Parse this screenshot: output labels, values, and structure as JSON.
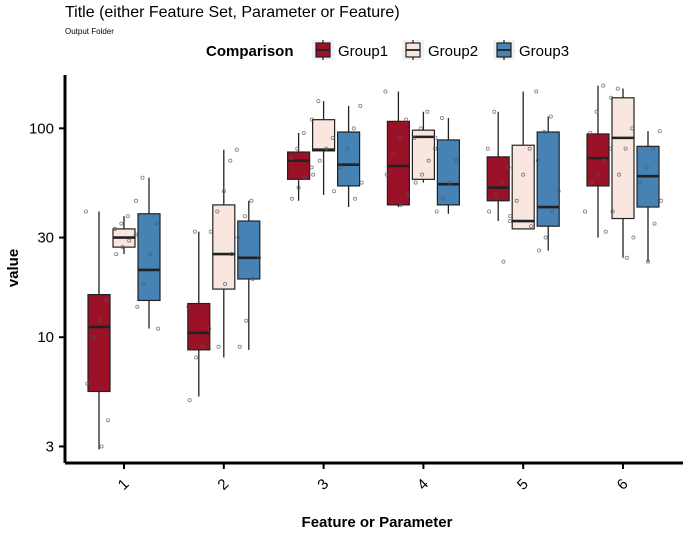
{
  "chart_data": {
    "type": "boxplot",
    "title": "Title (either Feature Set, Parameter or Feature)",
    "subtitle": "Output Folder",
    "xlabel": "Feature or Parameter",
    "ylabel": "value",
    "y_scale": "log10",
    "ylim": [
      2.5,
      180
    ],
    "y_ticks": [
      3,
      10,
      30,
      100
    ],
    "y_tick_labels": [
      "3",
      "10",
      "30",
      "100"
    ],
    "categories": [
      "1",
      "2",
      "3",
      "4",
      "5",
      "6"
    ],
    "legend": {
      "title": "Comparison",
      "position": "top",
      "entries": [
        "Group1",
        "Group2",
        "Group3"
      ]
    },
    "series": [
      {
        "name": "Group1",
        "color": "#9b1128",
        "boxes": [
          {
            "whisker_low": 2.9,
            "q1": 5.5,
            "median": 11.2,
            "q3": 16,
            "whisker_high": 40
          },
          {
            "whisker_low": 5.2,
            "q1": 8.7,
            "median": 10.5,
            "q3": 14.5,
            "whisker_high": 32
          },
          {
            "whisker_low": 45,
            "q1": 57,
            "median": 70,
            "q3": 77,
            "whisker_high": 95
          },
          {
            "whisker_low": 42,
            "q1": 43,
            "median": 66,
            "q3": 108,
            "whisker_high": 150
          },
          {
            "whisker_low": 36,
            "q1": 45,
            "median": 52,
            "q3": 73,
            "whisker_high": 120
          },
          {
            "whisker_low": 30,
            "q1": 53,
            "median": 72,
            "q3": 94,
            "whisker_high": 160
          }
        ],
        "points": [
          [
            [
              40,
              15,
              12,
              10,
              6,
              4,
              3
            ]
          ],
          [
            [
              32,
              14,
              11,
              9,
              8,
              5
            ]
          ],
          [
            [
              95,
              80,
              72,
              65,
              58,
              52,
              46
            ]
          ],
          [
            [
              150,
              110,
              90,
              75,
              60,
              48,
              43
            ]
          ],
          [
            [
              120,
              80,
              65,
              55,
              48,
              40,
              36,
              23
            ]
          ],
          [
            [
              160,
              120,
              95,
              80,
              70,
              60,
              55,
              40,
              32
            ]
          ]
        ]
      },
      {
        "name": "Group2",
        "color": "#f9e6de",
        "boxes": [
          {
            "whisker_low": 25,
            "q1": 27,
            "median": 30,
            "q3": 33,
            "whisker_high": 38
          },
          {
            "whisker_low": 8,
            "q1": 17,
            "median": 25,
            "q3": 43,
            "whisker_high": 79
          },
          {
            "whisker_low": 48,
            "q1": 78,
            "median": 79,
            "q3": 110,
            "whisker_high": 135
          },
          {
            "whisker_low": 55,
            "q1": 57,
            "median": 91,
            "q3": 98,
            "whisker_high": 120
          },
          {
            "whisker_low": 33,
            "q1": 33,
            "median": 36,
            "q3": 83,
            "whisker_high": 150
          },
          {
            "whisker_low": 24,
            "q1": 37,
            "median": 90,
            "q3": 140,
            "whisker_high": 155
          }
        ],
        "points": [
          [
            [
              38,
              35,
              33,
              31,
              29,
              27,
              25
            ]
          ],
          [
            [
              79,
              70,
              50,
              40,
              32,
              25,
              18,
              9
            ]
          ],
          [
            [
              135,
              110,
              90,
              80,
              70,
              60,
              50
            ]
          ],
          [
            [
              120,
              100,
              90,
              80,
              70,
              60,
              55
            ]
          ],
          [
            [
              150,
              80,
              60,
              45,
              38,
              34
            ]
          ],
          [
            [
              155,
              140,
              100,
              80,
              60,
              40,
              30,
              24
            ]
          ]
        ]
      },
      {
        "name": "Group3",
        "color": "#4682b4",
        "boxes": [
          {
            "whisker_low": 11,
            "q1": 15,
            "median": 21,
            "q3": 39,
            "whisker_high": 58
          },
          {
            "whisker_low": 8.7,
            "q1": 19,
            "median": 24,
            "q3": 36,
            "whisker_high": 45
          },
          {
            "whisker_low": 42,
            "q1": 53,
            "median": 67,
            "q3": 96,
            "whisker_high": 128
          },
          {
            "whisker_low": 39,
            "q1": 43,
            "median": 54,
            "q3": 88,
            "whisker_high": 112
          },
          {
            "whisker_low": 26,
            "q1": 34,
            "median": 42,
            "q3": 96,
            "whisker_high": 114
          },
          {
            "whisker_low": 23,
            "q1": 42,
            "median": 59,
            "q3": 82,
            "whisker_high": 97
          }
        ],
        "points": [
          [
            [
              58,
              45,
              35,
              25,
              18,
              14,
              11
            ]
          ],
          [
            [
              45,
              38,
              30,
              24,
              19,
              12,
              9
            ]
          ],
          [
            [
              128,
              100,
              80,
              65,
              55,
              46
            ]
          ],
          [
            [
              112,
              90,
              70,
              55,
              46,
              40
            ]
          ],
          [
            [
              114,
              96,
              70,
              50,
              40,
              30,
              26
            ]
          ],
          [
            [
              97,
              80,
              65,
              55,
              45,
              35,
              23
            ]
          ]
        ]
      }
    ]
  }
}
